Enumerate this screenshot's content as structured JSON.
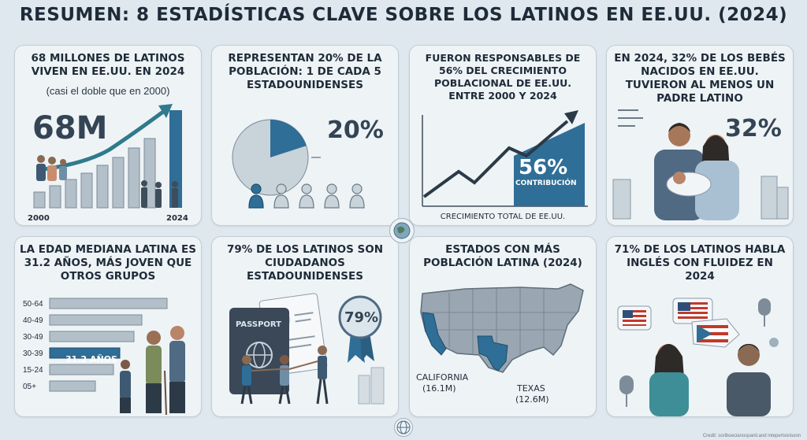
{
  "title": "RESUMEN: 8 ESTADÍSTICAS CLAVE SOBRE LOS LATINOS EN EE.UU. (2024)",
  "colors": {
    "accent": "#2f6e96",
    "dark": "#344454",
    "bg": "#dfe8ee",
    "card": "#eef3f6"
  },
  "cards": {
    "c1": {
      "title": "68 MILLONES DE LATINOS VIVEN EN EE.UU. EN 2024",
      "subtitle": "(casi el doble que en 2000)",
      "big": "68M",
      "x_start": "2000",
      "x_end": "2024"
    },
    "c2": {
      "title": "REPRESENTAN 20% DE LA POBLACIÓN: 1 DE CADA 5 ESTADOUNIDENSES",
      "big": "20%",
      "share": 0.2
    },
    "c3": {
      "title": "FUERON RESPONSABLES DE 56% DEL CRECIMIENTO POBLACIONAL DE EE.UU. ENTRE 2000 Y 2024",
      "big": "56%",
      "big_label": "CONTRIBUCIÓN",
      "footer": "CRECIMIENTO TOTAL DE EE.UU."
    },
    "c4": {
      "title": "EN 2024, 32% DE LOS BEBÉS NACIDOS EN EE.UU. TUVIERON AL MENOS UN PADRE LATINO",
      "big": "32%"
    },
    "c5": {
      "title": "LA EDAD MEDIANA LATINA ES 31.2 AÑOS, MÁS JOVEN QUE OTROS GRUPOS",
      "highlight": "31.2 AÑOS",
      "age_bars": [
        {
          "label": "50-64",
          "value": 0.92
        },
        {
          "label": "40-49",
          "value": 0.72
        },
        {
          "label": "30-49",
          "value": 0.66
        },
        {
          "label": "30-39",
          "value": 0.55
        },
        {
          "label": "15-24",
          "value": 0.5
        },
        {
          "label": "05+",
          "value": 0.36
        }
      ]
    },
    "c6": {
      "title": "79% DE LOS LATINOS SON CIUDADANOS ESTADOUNIDENSES",
      "big": "79%",
      "passport": "PASSPORT"
    },
    "c7": {
      "title": "ESTADOS CON MÁS POBLACIÓN LATINA (2024)",
      "state1": "CALIFORNIA",
      "state1_val": "(16.1M)",
      "state2": "TEXAS",
      "state2_val": "(12.6M)"
    },
    "c8": {
      "title": "71% DE LOS LATINOS HABLA INGLÉS CON FLUIDEZ EN 2024"
    }
  },
  "credit": "Credit: soriboecianospanil.and intepertsivisoon",
  "icons": [
    "trend-arrow-icon",
    "pie-icon",
    "globe-icon",
    "passport-icon",
    "award-badge-icon",
    "microphone-icon",
    "flag-us-icon",
    "flag-pr-icon"
  ]
}
